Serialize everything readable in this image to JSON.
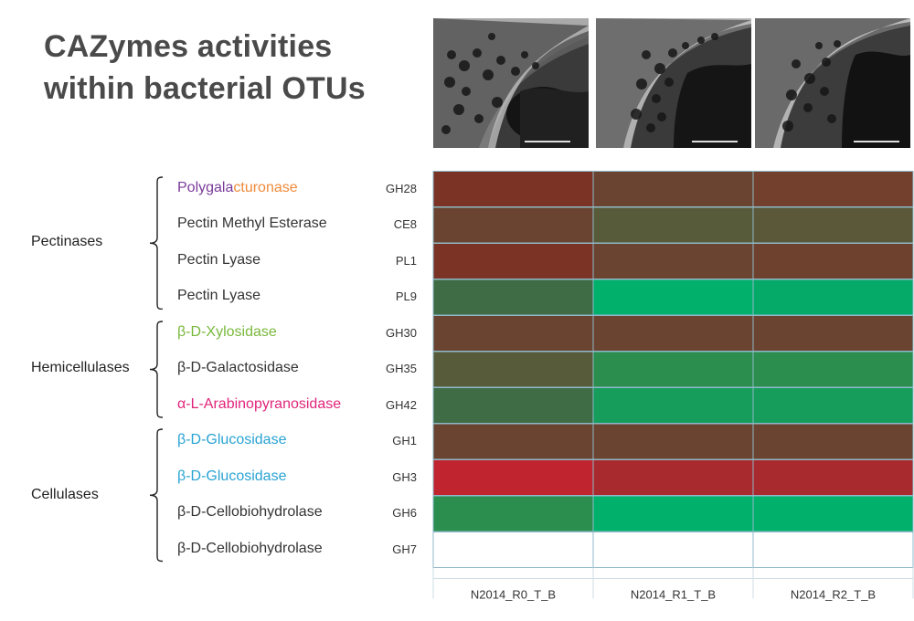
{
  "title": [
    "CAZymes activities",
    "within bacterial OTUs"
  ],
  "colors": {
    "dark_red": "#7b3326",
    "brown": "#6b4431",
    "olive": "#585b3a",
    "dark_green": "#3f6b45",
    "green": "#2b8e4e",
    "mid_green": "#169d5c",
    "bright_green": "#01b16b",
    "bright_red": "#c0242f",
    "red": "#a82a2e",
    "empty": "#ffffff"
  },
  "groups": [
    {
      "label": "Pectinases",
      "rows": [
        0,
        3
      ]
    },
    {
      "label": "Hemicellulases",
      "rows": [
        4,
        6
      ]
    },
    {
      "label": "Cellulases",
      "rows": [
        7,
        10
      ]
    }
  ],
  "rows": [
    {
      "parts": [
        {
          "text": "Polygala",
          "style": "hl-purple"
        },
        {
          "text": "cturonase",
          "style": "hl-orange"
        }
      ],
      "code": "GH28"
    },
    {
      "parts": [
        {
          "text": "Pectin Methyl Esterase",
          "style": ""
        }
      ],
      "code": "CE8"
    },
    {
      "parts": [
        {
          "text": "Pectin Lyase",
          "style": ""
        }
      ],
      "code": "PL1"
    },
    {
      "parts": [
        {
          "text": "Pectin Lyase",
          "style": ""
        }
      ],
      "code": "PL9"
    },
    {
      "parts": [
        {
          "text": "β-D-Xylosidase",
          "style": "hl-green"
        }
      ],
      "code": "GH30"
    },
    {
      "parts": [
        {
          "text": "β-D-Galactosidase",
          "style": ""
        }
      ],
      "code": "GH35"
    },
    {
      "parts": [
        {
          "text": "α-L-Arabinopyranosidase",
          "style": "hl-magenta"
        }
      ],
      "code": "GH42"
    },
    {
      "parts": [
        {
          "text": "β-D-Glucosidase",
          "style": "hl-cyan"
        }
      ],
      "code": "GH1"
    },
    {
      "parts": [
        {
          "text": "β-D-Glucosidase",
          "style": "hl-cyan"
        }
      ],
      "code": "GH3"
    },
    {
      "parts": [
        {
          "text": "β-D-Cellobiohydrolase",
          "style": ""
        }
      ],
      "code": "GH6"
    },
    {
      "parts": [
        {
          "text": "β-D-Cellobiohydrolase",
          "style": ""
        }
      ],
      "code": "GH7"
    }
  ],
  "chart_data": {
    "type": "heatmap",
    "title": "CAZymes activities within bacterial OTUs",
    "columns": [
      "N2014_R0_T_B",
      "N2014_R1_T_B",
      "N2014_R2_T_B"
    ],
    "row_labels": [
      "GH28",
      "CE8",
      "PL1",
      "PL9",
      "GH30",
      "GH35",
      "GH42",
      "GH1",
      "GH3",
      "GH6",
      "GH7"
    ],
    "cells": [
      [
        "#7b3326",
        "#6b4431",
        "#73402d"
      ],
      [
        "#6b4431",
        "#585b3a",
        "#5a5839"
      ],
      [
        "#7b3326",
        "#6b4431",
        "#6e412f"
      ],
      [
        "#3f6b45",
        "#01b16b",
        "#06aa68"
      ],
      [
        "#6b4431",
        "#6b4431",
        "#6b4431"
      ],
      [
        "#585b3a",
        "#2b8e4e",
        "#2b8e4e"
      ],
      [
        "#3f6b45",
        "#169d5c",
        "#169d5c"
      ],
      [
        "#6b4431",
        "#6b4431",
        "#6b4431"
      ],
      [
        "#c0242f",
        "#a82a2e",
        "#a82a2e"
      ],
      [
        "#2b8e4e",
        "#01b16b",
        "#01b16b"
      ],
      [
        "#ffffff",
        "#ffffff",
        "#ffffff"
      ]
    ],
    "grid": true,
    "legend": "none"
  }
}
